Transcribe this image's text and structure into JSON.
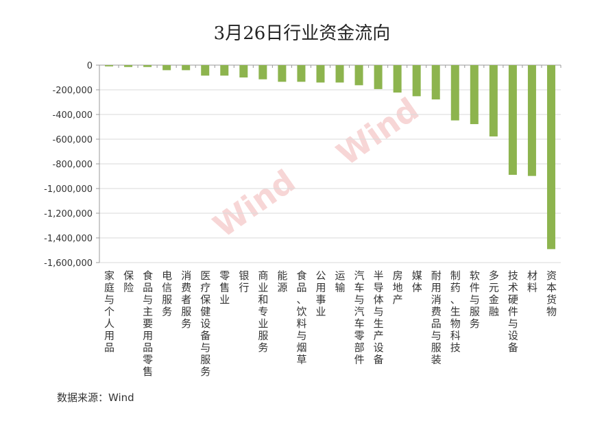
{
  "chart_data": {
    "type": "bar",
    "title": "3月26日行业资金流向",
    "xlabel": "",
    "ylabel": "",
    "ylim": [
      -1600000,
      0
    ],
    "yticks": [
      "0",
      "-200,000",
      "-400,000",
      "-600,000",
      "-800,000",
      "-1,000,000",
      "-1,200,000",
      "-1,400,000",
      "-1,600,000"
    ],
    "grid": true,
    "bar_color": "#8db44e",
    "categories": [
      "家庭与个人用品",
      "保险",
      "食品与主要用品零售",
      "电信服务",
      "消费者服务",
      "医疗保健设备与服务",
      "零售业",
      "银行",
      "商业和专业服务",
      "能源",
      "食品、饮料与烟草",
      "公用事业",
      "运输",
      "汽车与汽车零部件",
      "半导体与生产设备",
      "房地产",
      "媒体",
      "耐用消费品与服装",
      "制药、生物科技",
      "软件与服务",
      "多元金融",
      "技术硬件与设备",
      "材料",
      "资本货物"
    ],
    "values": [
      -10000,
      -15000,
      -15000,
      -41000,
      -41000,
      -85000,
      -85000,
      -100000,
      -115000,
      -135000,
      -135000,
      -141000,
      -141000,
      -163000,
      -194000,
      -222000,
      -252000,
      -278000,
      -448000,
      -478000,
      -578000,
      -889000,
      -898000,
      -1491000
    ]
  },
  "source": "数据来源：Wind",
  "watermark": "Wind"
}
